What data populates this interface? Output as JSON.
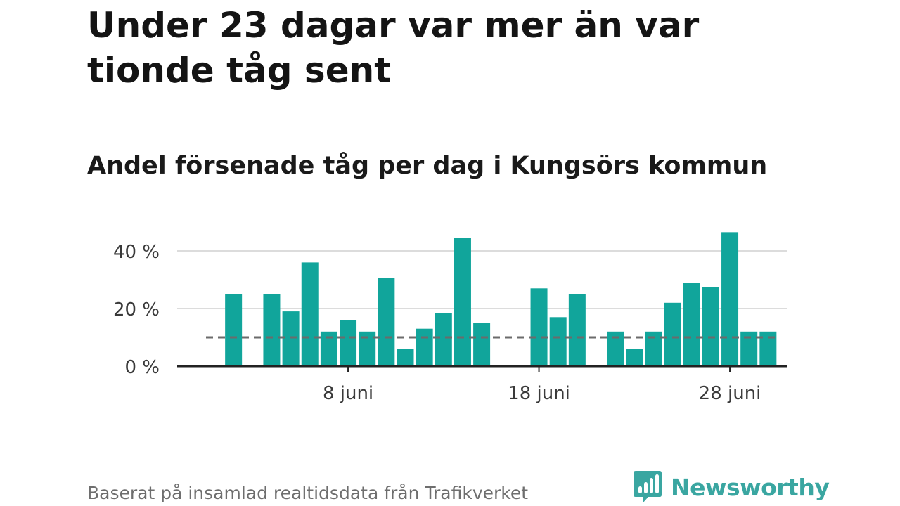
{
  "headline": "Under 23 dagar var mer än var tionde tåg sent",
  "subtitle": "Andel försenade tåg per dag i Kungsörs kommun",
  "source": "Baserat på insamlad realtidsdata från Trafikverket",
  "brand": {
    "name": "Newsworthy",
    "icon": "newsworthy-logo-icon"
  },
  "colors": {
    "bar": "#11a59b",
    "grid": "#dcdcdc",
    "axis": "#222222",
    "reference": "#6b6b6b",
    "brand": "#3aa6a1",
    "source": "#6e6e6e"
  },
  "chart_data": {
    "type": "bar",
    "title": "Andel försenade tåg per dag i Kungsörs kommun",
    "xlabel": "",
    "ylabel": "",
    "x": [
      1,
      2,
      3,
      4,
      5,
      6,
      7,
      8,
      9,
      10,
      11,
      12,
      13,
      14,
      15,
      16,
      17,
      18,
      19,
      20,
      21,
      22,
      23,
      24,
      25,
      26,
      27,
      28,
      29,
      30
    ],
    "values": [
      null,
      25,
      null,
      25,
      19,
      36,
      12,
      16,
      12,
      30.5,
      6,
      13,
      18.5,
      44.5,
      15,
      null,
      null,
      27,
      17,
      25,
      null,
      12,
      6,
      12,
      22,
      29,
      27.5,
      46.5,
      12,
      12
    ],
    "reference_line": 10,
    "ylim": [
      0,
      47
    ],
    "yticks": [
      {
        "value": 0,
        "label": "0 %"
      },
      {
        "value": 20,
        "label": "20 %"
      },
      {
        "value": 40,
        "label": "40 %"
      }
    ],
    "xticks": [
      {
        "value": 8,
        "label": "8 juni"
      },
      {
        "value": 18,
        "label": "18 juni"
      },
      {
        "value": 28,
        "label": "28 juni"
      }
    ],
    "grid": true,
    "legend": "none"
  }
}
